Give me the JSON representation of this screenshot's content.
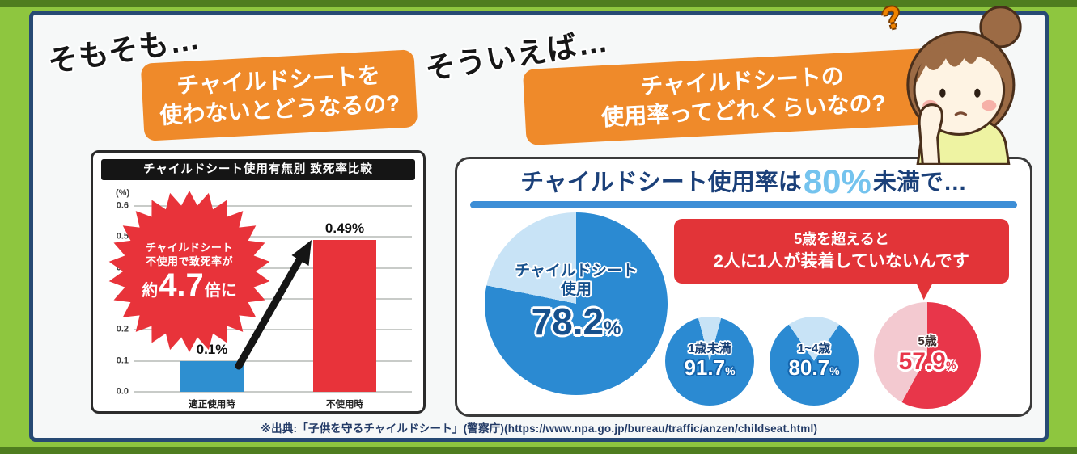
{
  "colors": {
    "background_green": "#8ec63f",
    "stripe_dark_green": "#4f7d1f",
    "frame_navy": "#274a74",
    "banner_orange": "#ef8a2a",
    "bar_blue": "#2e8fd0",
    "bar_red": "#e8333a",
    "pie_blue": "#2b8ad2",
    "pie_light_blue": "#c8e3f6",
    "pie_pink_red": "#e8364a",
    "pie_pink_light": "#f3c9d0",
    "bubble_red": "#e23438",
    "title_navy": "#1b4079",
    "highlight_blue": "#74c3ee"
  },
  "icons": {
    "question_mark": "?"
  },
  "left": {
    "catch": "そもそも…",
    "banner_line1": "チャイルドシートを",
    "banner_line2": "使わないとどうなるの?",
    "chart": {
      "title": "チャイルドシート使用有無別 致死率比較",
      "unit": "(%)",
      "ymax": 0.6,
      "yticks": [
        "0.6",
        "0.5",
        "0.4",
        "0.3",
        "0.2",
        "0.1",
        "0.0"
      ],
      "burst_line1": "チャイルドシート",
      "burst_line2": "不使用で致死率が",
      "burst_big_prefix": "約",
      "burst_big_num": "4.7",
      "burst_big_suffix": "倍に",
      "bars": [
        {
          "category": "適正使用時",
          "label": "0.1%",
          "value": 0.1,
          "color": "#2e8fd0"
        },
        {
          "category": "不使用時",
          "label": "0.49%",
          "value": 0.49,
          "color": "#e8333a"
        }
      ]
    }
  },
  "right": {
    "catch": "そういえば…",
    "banner_line1": "チャイルドシートの",
    "banner_line2": "使用率ってどれくらいなの?",
    "panel": {
      "title_pre": "チャイルドシート使用率は",
      "title_highlight": "80%",
      "title_post": "未満で…",
      "big_pie": {
        "label_line1": "チャイルドシート",
        "label_line2": "使用",
        "value_label": "78.2",
        "unit": "%",
        "percent": 78.2,
        "color": "#2b8ad2",
        "light": "#c8e3f6",
        "from_deg": -78.5
      },
      "bubble_line1": "5歳を超えると",
      "bubble_line2": "2人に1人が装着していないんです",
      "small_pies": [
        {
          "label": "1歳未満",
          "value_label": "91.7",
          "unit": "%",
          "percent": 91.7,
          "color": "#2b8ad2",
          "light": "#c8e3f6",
          "from_deg": -14.9
        },
        {
          "label": "1~4歳",
          "value_label": "80.7",
          "unit": "%",
          "percent": 80.7,
          "color": "#2b8ad2",
          "light": "#c8e3f6",
          "from_deg": -34.7
        },
        {
          "label": "5歳",
          "value_label": "57.9",
          "unit": "%",
          "percent": 57.9,
          "color": "#e8364a",
          "light": "#f3c9d0",
          "from_deg": -151.6
        }
      ]
    }
  },
  "footer": {
    "source": "※出典:「子供を守るチャイルドシート」(警察庁)(https://www.npa.go.jp/bureau/traffic/anzen/childseat.html)"
  },
  "chart_data": [
    {
      "type": "bar",
      "title": "チャイルドシート使用有無別 致死率比較",
      "categories": [
        "適正使用時",
        "不使用時"
      ],
      "values": [
        0.1,
        0.49
      ],
      "data_labels": [
        "0.1%",
        "0.49%"
      ],
      "ylabel": "(%)",
      "ylim": [
        0.0,
        0.6
      ],
      "ytick_step": 0.1,
      "grid": true,
      "bar_colors": [
        "#2e8fd0",
        "#e8333a"
      ],
      "annotation": "チャイルドシート不使用で致死率が約4.7倍に"
    },
    {
      "type": "pie",
      "title": "チャイルドシート使用率は80%未満で…",
      "slices": [
        {
          "label": "チャイルドシート使用",
          "value": 78.2,
          "color": "#2b8ad2"
        },
        {
          "label": "不使用",
          "value": 21.8,
          "color": "#c8e3f6"
        }
      ]
    },
    {
      "type": "pie",
      "title": "1歳未満",
      "slices": [
        {
          "label": "使用",
          "value": 91.7,
          "color": "#2b8ad2"
        },
        {
          "label": "不使用",
          "value": 8.3,
          "color": "#c8e3f6"
        }
      ]
    },
    {
      "type": "pie",
      "title": "1~4歳",
      "slices": [
        {
          "label": "使用",
          "value": 80.7,
          "color": "#2b8ad2"
        },
        {
          "label": "不使用",
          "value": 19.3,
          "color": "#c8e3f6"
        }
      ]
    },
    {
      "type": "pie",
      "title": "5歳",
      "slices": [
        {
          "label": "使用",
          "value": 57.9,
          "color": "#e8364a"
        },
        {
          "label": "不使用",
          "value": 42.1,
          "color": "#f3c9d0"
        }
      ],
      "annotation": "5歳を超えると2人に1人が装着していないんです"
    }
  ]
}
